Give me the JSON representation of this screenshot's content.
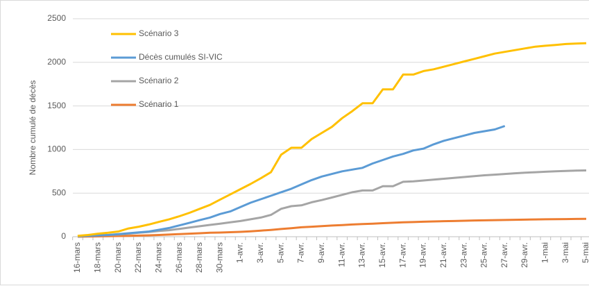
{
  "chart_data": {
    "type": "line",
    "y_label": "Nombre cumulé de décès",
    "categories": [
      "16-mars",
      null,
      "18-mars",
      null,
      "20-mars",
      null,
      "22-mars",
      null,
      "24-mars",
      null,
      "26-mars",
      null,
      "28-mars",
      null,
      "30-mars",
      null,
      "1-avr.",
      null,
      "3-avr.",
      null,
      "5-avr.",
      null,
      "7-avr.",
      null,
      "9-avr.",
      null,
      "11-avr.",
      null,
      "13-avr.",
      null,
      "15-avr.",
      null,
      "17-avr.",
      null,
      "19-avr.",
      null,
      "21-avr.",
      null,
      "23-avr.",
      null,
      "25-avr.",
      null,
      "27-avr.",
      null,
      "29-avr.",
      null,
      "1-mai",
      null,
      "3-mai",
      null,
      "5-mai"
    ],
    "series": [
      {
        "name": "Scénario 3",
        "color": "#FFC000",
        "values": [
          10,
          20,
          35,
          45,
          60,
          95,
          115,
          140,
          170,
          200,
          235,
          275,
          320,
          365,
          425,
          485,
          545,
          605,
          670,
          740,
          940,
          1020,
          1020,
          1120,
          1190,
          1260,
          1360,
          1440,
          1530,
          1530,
          1690,
          1690,
          1860,
          1860,
          1900,
          1920,
          1950,
          1980,
          2010,
          2040,
          2070,
          2100,
          2120,
          2140,
          2160,
          2180,
          2190,
          2200,
          2210,
          2215,
          2220
        ]
      },
      {
        "name": "Décès cumulés SI-VIC",
        "color": "#5B9BD5",
        "values": [
          5,
          10,
          15,
          20,
          30,
          40,
          50,
          60,
          80,
          100,
          130,
          160,
          190,
          220,
          260,
          290,
          340,
          390,
          430,
          470,
          510,
          550,
          600,
          650,
          690,
          720,
          750,
          770,
          790,
          840,
          880,
          920,
          950,
          990,
          1010,
          1060,
          1100,
          1130,
          1160,
          1190,
          1210,
          1230,
          1270,
          null,
          null,
          null,
          null,
          null,
          null,
          null,
          null
        ]
      },
      {
        "name": "Scénario 2",
        "color": "#A5A5A5",
        "values": [
          5,
          10,
          15,
          20,
          25,
          35,
          45,
          55,
          65,
          75,
          90,
          105,
          120,
          135,
          150,
          165,
          180,
          200,
          220,
          250,
          320,
          350,
          360,
          395,
          420,
          450,
          480,
          510,
          530,
          530,
          580,
          580,
          630,
          635,
          645,
          655,
          665,
          675,
          685,
          695,
          705,
          712,
          720,
          728,
          735,
          740,
          745,
          750,
          755,
          758,
          760
        ]
      },
      {
        "name": "Scénario 1",
        "color": "#ED7D31",
        "values": [
          0,
          2,
          4,
          6,
          8,
          10,
          13,
          16,
          20,
          25,
          30,
          35,
          40,
          45,
          48,
          52,
          56,
          62,
          70,
          78,
          88,
          98,
          108,
          115,
          122,
          128,
          134,
          140,
          146,
          150,
          155,
          160,
          165,
          168,
          172,
          175,
          178,
          180,
          183,
          186,
          188,
          190,
          192,
          194,
          196,
          198,
          200,
          201,
          202,
          204,
          205
        ]
      }
    ],
    "ylim": [
      0,
      2500
    ],
    "yticks": [
      0,
      500,
      1000,
      1500,
      2000,
      2500
    ],
    "grid": true
  }
}
